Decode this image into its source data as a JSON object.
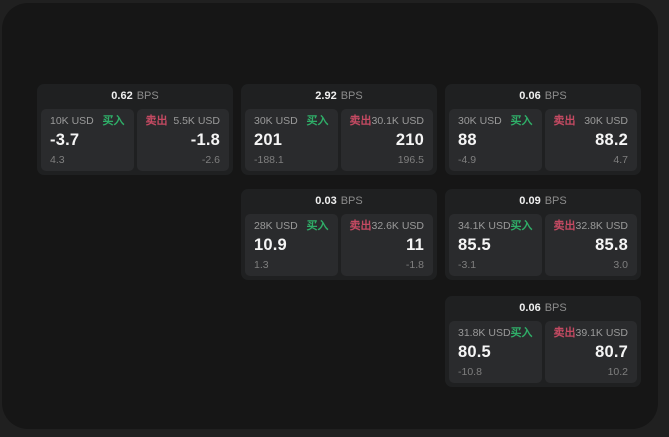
{
  "labels": {
    "bps_suffix": "BPS",
    "buy": "买入",
    "sell": "卖出"
  },
  "colors": {
    "buy": "#2fae68",
    "sell": "#c44a62",
    "page_bg": "#202020",
    "panel_bg": "#161616",
    "card_bg": "#1f2021",
    "tile_bg": "#2a2b2d"
  },
  "cards": [
    {
      "bps": "0.62",
      "buy": {
        "notional": "10K USD",
        "value": "-3.7",
        "delta": "4.3"
      },
      "sell": {
        "notional": "5.5K USD",
        "value": "-1.8",
        "delta": "-2.6"
      }
    },
    {
      "bps": "2.92",
      "buy": {
        "notional": "30K USD",
        "value": "201",
        "delta": "-188.1"
      },
      "sell": {
        "notional": "30.1K USD",
        "value": "210",
        "delta": "196.5"
      }
    },
    {
      "bps": "0.06",
      "buy": {
        "notional": "30K USD",
        "value": "88",
        "delta": "-4.9"
      },
      "sell": {
        "notional": "30K USD",
        "value": "88.2",
        "delta": "4.7"
      }
    },
    {
      "bps": "0.03",
      "buy": {
        "notional": "28K USD",
        "value": "10.9",
        "delta": "1.3"
      },
      "sell": {
        "notional": "32.6K USD",
        "value": "11",
        "delta": "-1.8"
      }
    },
    {
      "bps": "0.09",
      "buy": {
        "notional": "34.1K USD",
        "value": "85.5",
        "delta": "-3.1"
      },
      "sell": {
        "notional": "32.8K USD",
        "value": "85.8",
        "delta": "3.0"
      }
    },
    {
      "bps": "0.06",
      "buy": {
        "notional": "31.8K USD",
        "value": "80.5",
        "delta": "-10.8"
      },
      "sell": {
        "notional": "39.1K USD",
        "value": "80.7",
        "delta": "10.2"
      }
    }
  ]
}
